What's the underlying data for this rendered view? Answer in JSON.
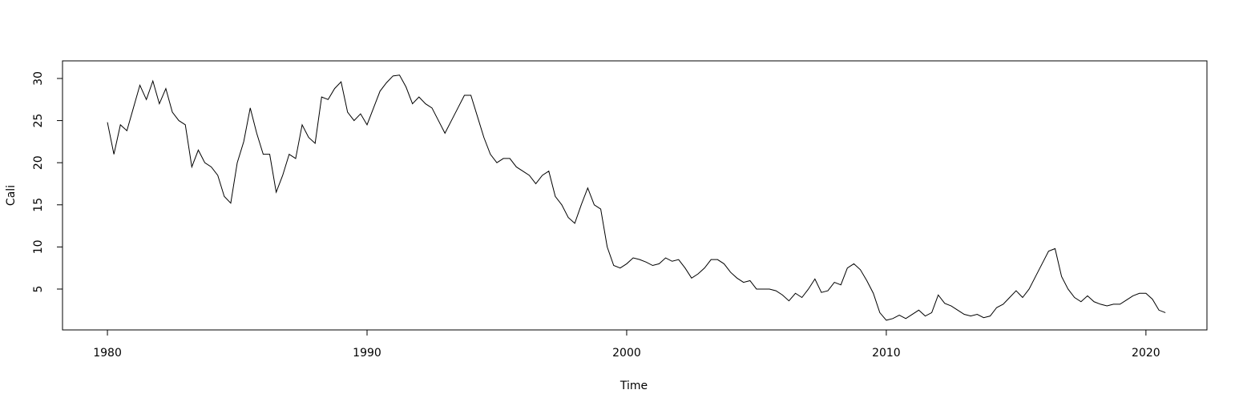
{
  "chart_data": {
    "type": "line",
    "x_label": "Time",
    "y_label": "Cali",
    "color": "#000000",
    "x": [
      1980.0,
      1980.25,
      1980.5,
      1980.75,
      1981.0,
      1981.25,
      1981.5,
      1981.75,
      1982.0,
      1982.25,
      1982.5,
      1982.75,
      1983.0,
      1983.25,
      1983.5,
      1983.75,
      1984.0,
      1984.25,
      1984.5,
      1984.75,
      1985.0,
      1985.25,
      1985.5,
      1985.75,
      1986.0,
      1986.25,
      1986.5,
      1986.75,
      1987.0,
      1987.25,
      1987.5,
      1987.75,
      1988.0,
      1988.25,
      1988.5,
      1988.75,
      1989.0,
      1989.25,
      1989.5,
      1989.75,
      1990.0,
      1990.25,
      1990.5,
      1990.75,
      1991.0,
      1991.25,
      1991.5,
      1991.75,
      1992.0,
      1992.25,
      1992.5,
      1992.75,
      1993.0,
      1993.25,
      1993.5,
      1993.75,
      1994.0,
      1994.25,
      1994.5,
      1994.75,
      1995.0,
      1995.25,
      1995.5,
      1995.75,
      1996.0,
      1996.25,
      1996.5,
      1996.75,
      1997.0,
      1997.25,
      1997.5,
      1997.75,
      1998.0,
      1998.25,
      1998.5,
      1998.75,
      1999.0,
      1999.25,
      1999.5,
      1999.75,
      2000.0,
      2000.25,
      2000.5,
      2000.75,
      2001.0,
      2001.25,
      2001.5,
      2001.75,
      2002.0,
      2002.25,
      2002.5,
      2002.75,
      2003.0,
      2003.25,
      2003.5,
      2003.75,
      2004.0,
      2004.25,
      2004.5,
      2004.75,
      2005.0,
      2005.25,
      2005.5,
      2005.75,
      2006.0,
      2006.25,
      2006.5,
      2006.75,
      2007.0,
      2007.25,
      2007.5,
      2007.75,
      2008.0,
      2008.25,
      2008.5,
      2008.75,
      2009.0,
      2009.25,
      2009.5,
      2009.75,
      2010.0,
      2010.25,
      2010.5,
      2010.75,
      2011.0,
      2011.25,
      2011.5,
      2011.75,
      2012.0,
      2012.25,
      2012.5,
      2012.75,
      2013.0,
      2013.25,
      2013.5,
      2013.75,
      2014.0,
      2014.25,
      2014.5,
      2014.75,
      2015.0,
      2015.25,
      2015.5,
      2015.75,
      2016.0,
      2016.25,
      2016.5,
      2016.75,
      2017.0,
      2017.25,
      2017.5,
      2017.75,
      2018.0,
      2018.25,
      2018.5,
      2018.75,
      2019.0,
      2019.25,
      2019.5,
      2019.75,
      2020.0,
      2020.25,
      2020.5,
      2020.75
    ],
    "values": [
      24.8,
      21.0,
      24.5,
      23.8,
      26.5,
      29.2,
      27.5,
      29.7,
      27.0,
      28.8,
      26.0,
      25.0,
      24.5,
      19.5,
      21.5,
      20.0,
      19.5,
      18.5,
      16.0,
      15.2,
      20.0,
      22.5,
      26.5,
      23.5,
      21.0,
      21.0,
      16.5,
      18.5,
      21.0,
      20.5,
      24.5,
      23.0,
      22.3,
      27.8,
      27.5,
      28.8,
      29.6,
      26.0,
      25.0,
      25.8,
      24.5,
      26.5,
      28.5,
      29.5,
      30.3,
      30.4,
      29.0,
      27.0,
      27.8,
      27.0,
      26.5,
      25.0,
      23.5,
      25.0,
      26.5,
      28.0,
      28.0,
      25.5,
      23.0,
      21.0,
      20.0,
      20.5,
      20.5,
      19.5,
      19.0,
      18.5,
      17.5,
      18.5,
      19.0,
      16.0,
      15.0,
      13.5,
      12.8,
      15.0,
      17.0,
      15.0,
      14.5,
      10.0,
      7.8,
      7.5,
      8.0,
      8.7,
      8.5,
      8.2,
      7.8,
      8.0,
      8.7,
      8.3,
      8.5,
      7.5,
      6.3,
      6.8,
      7.5,
      8.5,
      8.5,
      8.0,
      7.0,
      6.3,
      5.8,
      6.0,
      5.0,
      5.0,
      5.0,
      4.8,
      4.3,
      3.6,
      4.5,
      4.0,
      5.0,
      6.2,
      4.6,
      4.8,
      5.8,
      5.5,
      7.5,
      8.0,
      7.3,
      6.0,
      4.5,
      2.2,
      1.3,
      1.5,
      1.9,
      1.5,
      2.0,
      2.5,
      1.8,
      2.2,
      4.3,
      3.3,
      3.0,
      2.5,
      2.0,
      1.8,
      2.0,
      1.6,
      1.8,
      2.8,
      3.2,
      4.0,
      4.8,
      4.0,
      5.0,
      6.5,
      8.0,
      9.5,
      9.8,
      6.5,
      5.0,
      4.0,
      3.5,
      4.2,
      3.5,
      3.2,
      3.0,
      3.2,
      3.2,
      3.7,
      4.2,
      4.5,
      4.5,
      3.8,
      2.5,
      2.2
    ],
    "xlim": [
      1978.27,
      2022.35
    ],
    "xticks": [
      1980,
      1990,
      2000,
      2010,
      2020
    ],
    "ylim": [
      0.15,
      32.09
    ],
    "yticks": [
      5,
      10,
      15,
      20,
      25,
      30
    ]
  }
}
